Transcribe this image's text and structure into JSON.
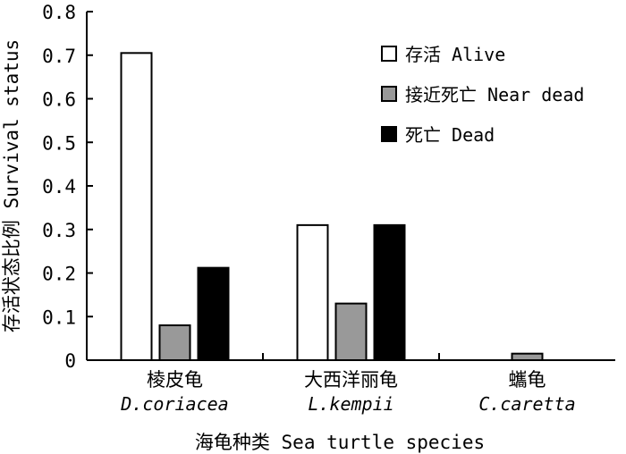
{
  "chart_data": {
    "type": "bar",
    "title": "",
    "categories": [
      {
        "cn": "棱皮龟",
        "en": "D.coriacea"
      },
      {
        "cn": "大西洋丽龟",
        "en": "L.kempii"
      },
      {
        "cn": "蠵龟",
        "en": "C.caretta"
      }
    ],
    "series": [
      {
        "name": "存活 Alive",
        "color": "#ffffff",
        "values": [
          0.705,
          0.31,
          0
        ]
      },
      {
        "name": "接近死亡 Near dead",
        "color": "#999999",
        "values": [
          0.08,
          0.13,
          0.015
        ]
      },
      {
        "name": "死亡 Dead",
        "color": "#000000",
        "values": [
          0.212,
          0.31,
          0
        ]
      }
    ],
    "xlabel": "海龟种类 Sea turtle species",
    "ylabel": "存活状态比例 Survival status",
    "ylim": [
      0,
      0.8
    ],
    "yticks": [
      0,
      0.1,
      0.2,
      0.3,
      0.4,
      0.5,
      0.6,
      0.7,
      0.8
    ],
    "ytick_labels": [
      "0",
      "0.1",
      "0.2",
      "0.3",
      "0.4",
      "0.5",
      "0.6",
      "0.7",
      "0.8"
    ],
    "legend_position": "top-right",
    "grid": false
  }
}
